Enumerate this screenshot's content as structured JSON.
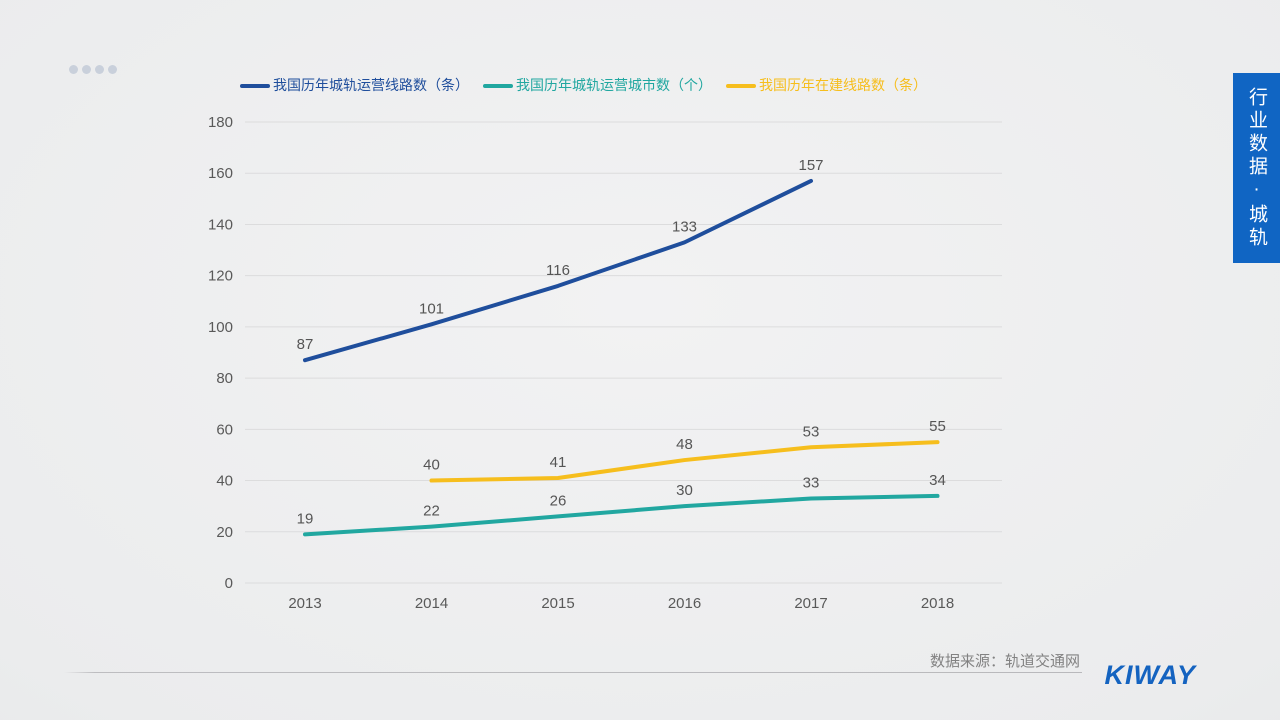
{
  "side_tab": {
    "label": "行业数据·城轨",
    "background_color": "#1065c3",
    "text_color": "#ffffff"
  },
  "footer": {
    "source_label": "数据来源：轨道交通网",
    "brand": "KIWAY",
    "brand_color": "#1463c0"
  },
  "chart_data": {
    "type": "line",
    "title": "",
    "xlabel": "",
    "ylabel": "",
    "categories": [
      "2013",
      "2014",
      "2015",
      "2016",
      "2017",
      "2018"
    ],
    "series": [
      {
        "name": "我国历年城轨运营线路数（条）",
        "color": "#1f4e9c",
        "values": [
          87,
          101,
          116,
          133,
          157,
          null
        ]
      },
      {
        "name": "我国历年城轨运营城市数（个）",
        "color": "#21a7a0",
        "values": [
          19,
          22,
          26,
          30,
          33,
          34
        ]
      },
      {
        "name": "我国历年在建线路数（条）",
        "color": "#f6be1d",
        "values": [
          null,
          40,
          41,
          48,
          53,
          55
        ]
      }
    ],
    "ylim": [
      0,
      180
    ],
    "ytick_step": 20,
    "grid": true,
    "gridline_color": "#dcdcdd",
    "tick_label_color": "#595959",
    "data_label_color": "#555555",
    "legend_position": "top"
  }
}
